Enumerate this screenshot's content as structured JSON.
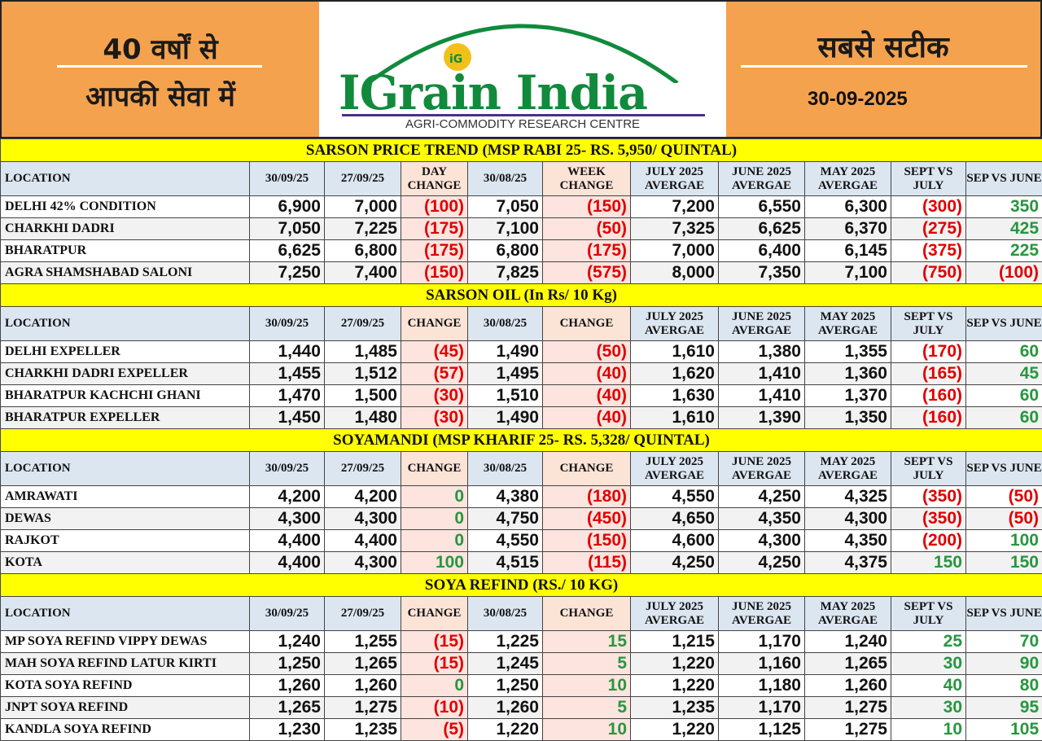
{
  "header": {
    "left_line1": "40 वर्षों से",
    "left_line2": "आपकी सेवा में",
    "logo_text": "IGrain India",
    "logo_sub": "AGRI-COMMODITY RESEARCH CENTRE",
    "right_line1": "सबसे सटीक",
    "date": "30-09-2025"
  },
  "colors": {
    "orange": "#f5a24e",
    "yellow": "#ffff00",
    "header_blue": "#dce6f1",
    "negative": "#e00000",
    "positive": "#27963f"
  },
  "sections": [
    {
      "title": "SARSON PRICE TREND (MSP RABI 25- RS. 5,950/ QUINTAL)",
      "columns": [
        "LOCATION",
        "30/09/25",
        "27/09/25",
        "DAY CHANGE",
        "30/08/25",
        "WEEK CHANGE",
        "JULY 2025 AVERGAE",
        "JUNE 2025 AVERGAE",
        "MAY 2025 AVERGAE",
        "SEPT VS JULY",
        "SEP VS JUNE"
      ],
      "rows": [
        [
          "DELHI 42% CONDITION",
          "6,900",
          "7,000",
          "(100)",
          "7,050",
          "(150)",
          "7,200",
          "6,550",
          "6,300",
          "(300)",
          "350"
        ],
        [
          "CHARKHI DADRI",
          "7,050",
          "7,225",
          "(175)",
          "7,100",
          "(50)",
          "7,325",
          "6,625",
          "6,370",
          "(275)",
          "425"
        ],
        [
          "BHARATPUR",
          "6,625",
          "6,800",
          "(175)",
          "6,800",
          "(175)",
          "7,000",
          "6,400",
          "6,145",
          "(375)",
          "225"
        ],
        [
          "AGRA SHAMSHABAD SALONI",
          "7,250",
          "7,400",
          "(150)",
          "7,825",
          "(575)",
          "8,000",
          "7,350",
          "7,100",
          "(750)",
          "(100)"
        ]
      ]
    },
    {
      "title": "SARSON OIL (In Rs/ 10 Kg)",
      "columns": [
        "LOCATION",
        "30/09/25",
        "27/09/25",
        "CHANGE",
        "30/08/25",
        "CHANGE",
        "JULY 2025 AVERGAE",
        "JUNE 2025 AVERGAE",
        "MAY 2025 AVERGAE",
        "SEPT VS JULY",
        "SEP VS JUNE"
      ],
      "rows": [
        [
          "DELHI EXPELLER",
          "1,440",
          "1,485",
          "(45)",
          "1,490",
          "(50)",
          "1,610",
          "1,380",
          "1,355",
          "(170)",
          "60"
        ],
        [
          "CHARKHI DADRI EXPELLER",
          "1,455",
          "1,512",
          "(57)",
          "1,495",
          "(40)",
          "1,620",
          "1,410",
          "1,360",
          "(165)",
          "45"
        ],
        [
          "BHARATPUR KACHCHI GHANI",
          "1,470",
          "1,500",
          "(30)",
          "1,510",
          "(40)",
          "1,630",
          "1,410",
          "1,370",
          "(160)",
          "60"
        ],
        [
          "BHARATPUR EXPELLER",
          "1,450",
          "1,480",
          "(30)",
          "1,490",
          "(40)",
          "1,610",
          "1,390",
          "1,350",
          "(160)",
          "60"
        ]
      ]
    },
    {
      "title": "SOYAMANDI (MSP KHARIF 25- RS. 5,328/ QUINTAL)",
      "columns": [
        "LOCATION",
        "30/09/25",
        "27/09/25",
        "CHANGE",
        "30/08/25",
        "CHANGE",
        "JULY 2025 AVERGAE",
        "JUNE 2025 AVERGAE",
        "MAY 2025 AVERGAE",
        "SEPT VS JULY",
        "SEP VS JUNE"
      ],
      "rows": [
        [
          "AMRAWATI",
          "4,200",
          "4,200",
          "0",
          "4,380",
          "(180)",
          "4,550",
          "4,250",
          "4,325",
          "(350)",
          "(50)"
        ],
        [
          "DEWAS",
          "4,300",
          "4,300",
          "0",
          "4,750",
          "(450)",
          "4,650",
          "4,350",
          "4,300",
          "(350)",
          "(50)"
        ],
        [
          "RAJKOT",
          "4,400",
          "4,400",
          "0",
          "4,550",
          "(150)",
          "4,600",
          "4,300",
          "4,350",
          "(200)",
          "100"
        ],
        [
          "KOTA",
          "4,400",
          "4,300",
          "100",
          "4,515",
          "(115)",
          "4,250",
          "4,250",
          "4,375",
          "150",
          "150"
        ]
      ]
    },
    {
      "title": "SOYA REFIND (RS./ 10 KG)",
      "columns": [
        "LOCATION",
        "30/09/25",
        "27/09/25",
        "CHANGE",
        "30/08/25",
        "CHANGE",
        "JULY 2025 AVERGAE",
        "JUNE 2025 AVERGAE",
        "MAY 2025 AVERGAE",
        "SEPT VS JULY",
        "SEP VS JUNE"
      ],
      "rows": [
        [
          "MP SOYA REFIND VIPPY DEWAS",
          "1,240",
          "1,255",
          "(15)",
          "1,225",
          "15",
          "1,215",
          "1,170",
          "1,240",
          "25",
          "70"
        ],
        [
          "MAH SOYA REFIND LATUR KIRTI",
          "1,250",
          "1,265",
          "(15)",
          "1,245",
          "5",
          "1,220",
          "1,160",
          "1,265",
          "30",
          "90"
        ],
        [
          "KOTA SOYA REFIND",
          "1,260",
          "1,260",
          "0",
          "1,250",
          "10",
          "1,220",
          "1,180",
          "1,260",
          "40",
          "80"
        ],
        [
          "JNPT SOYA REFIND",
          "1,265",
          "1,275",
          "(10)",
          "1,260",
          "5",
          "1,235",
          "1,170",
          "1,275",
          "30",
          "95"
        ],
        [
          "KANDLA SOYA REFIND",
          "1,230",
          "1,235",
          "(5)",
          "1,220",
          "10",
          "1,220",
          "1,125",
          "1,275",
          "10",
          "105"
        ]
      ]
    }
  ]
}
